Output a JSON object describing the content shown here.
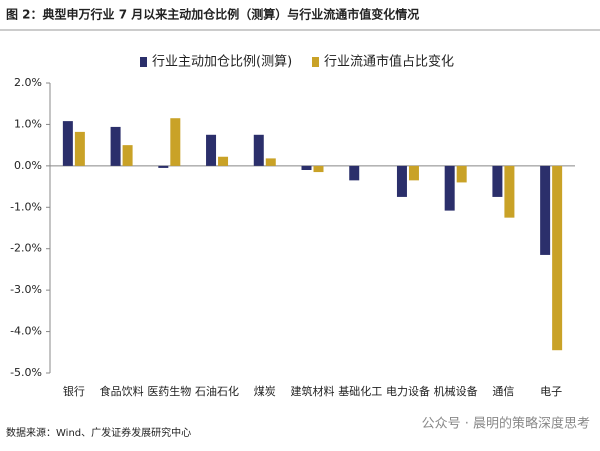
{
  "title": "图 2：典型申万行业 7 月以来主动加仓比例（测算）与行业流通市值变化情况",
  "source": "数据来源：Wind、广发证券发展研究中心",
  "watermark": "公众号 · 晨明的策略深度思考",
  "chart_data": {
    "type": "bar",
    "categories": [
      "银行",
      "食品饮料",
      "医药生物",
      "石油石化",
      "煤炭",
      "建筑材料",
      "基础化工",
      "电力设备",
      "机械设备",
      "通信",
      "电子"
    ],
    "series": [
      {
        "name": "行业主动加仓比例(测算)",
        "color": "#2b2f6b",
        "values": [
          1.08,
          0.94,
          -0.05,
          0.75,
          0.75,
          -0.1,
          -0.35,
          -0.75,
          -1.08,
          -0.75,
          -2.15
        ]
      },
      {
        "name": "行业流通市值占比变化",
        "color": "#c9a227",
        "values": [
          0.82,
          0.5,
          1.15,
          0.22,
          0.18,
          -0.15,
          0,
          -0.35,
          -0.4,
          -1.25,
          -4.45
        ]
      }
    ],
    "ylim": [
      -5,
      2
    ],
    "yticks": [
      {
        "value": 2,
        "label": "2.0%"
      },
      {
        "value": 1,
        "label": "1.0%"
      },
      {
        "value": 0,
        "label": "0.0%"
      },
      {
        "value": -1,
        "label": "-1.0%"
      },
      {
        "value": -2,
        "label": "-2.0%"
      },
      {
        "value": -3,
        "label": "-3.0%"
      },
      {
        "value": -4,
        "label": "-4.0%"
      },
      {
        "value": -5,
        "label": "-5.0%"
      }
    ],
    "grid": false,
    "legend": "top"
  }
}
